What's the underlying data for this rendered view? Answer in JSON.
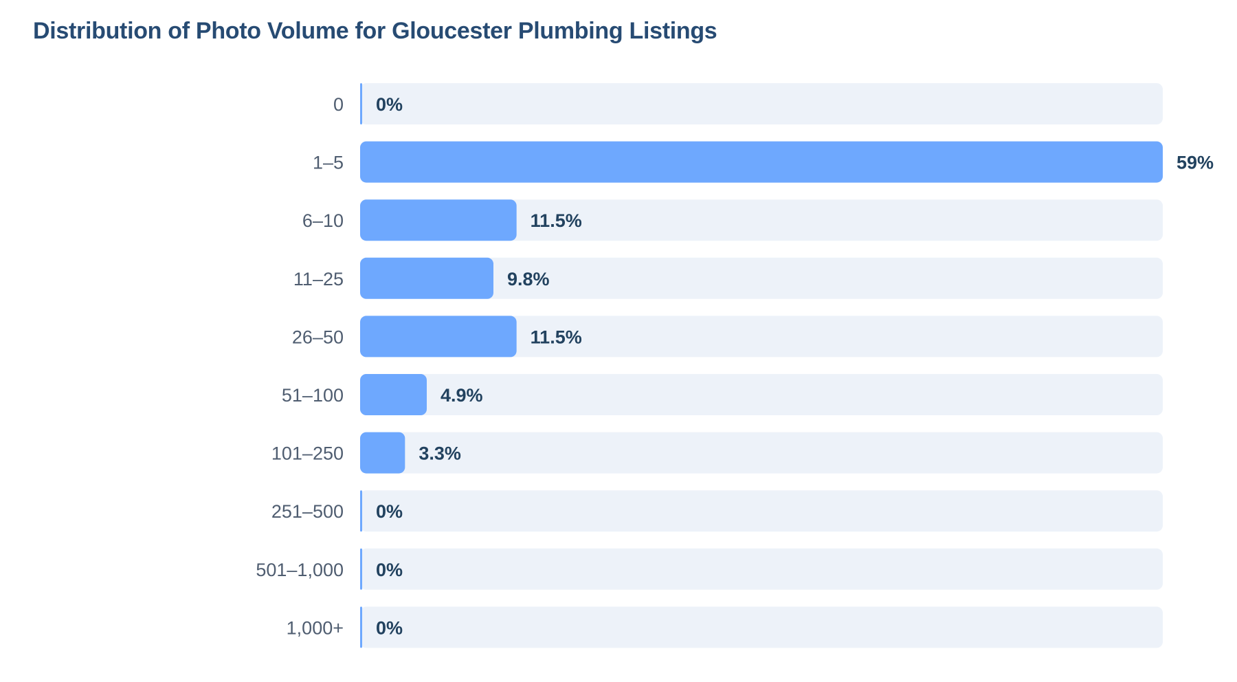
{
  "chart_data": {
    "type": "bar",
    "orientation": "horizontal",
    "title": "Distribution of Photo Volume for Gloucester Plumbing Listings",
    "xlabel": "",
    "ylabel": "",
    "categories": [
      "0",
      "1–5",
      "6–10",
      "11–25",
      "26–50",
      "51–100",
      "101–250",
      "251–500",
      "501–1,000",
      "1,000+"
    ],
    "values": [
      0,
      59,
      11.5,
      9.8,
      11.5,
      4.9,
      3.3,
      0,
      0,
      0
    ],
    "value_labels": [
      "0%",
      "59%",
      "11.5%",
      "9.8%",
      "11.5%",
      "4.9%",
      "3.3%",
      "0%",
      "0%",
      "0%"
    ],
    "xlim": [
      0,
      59
    ],
    "grid": false,
    "legend": "none",
    "colors": {
      "bar": "#6ea8fe",
      "track": "#edf2f9",
      "title": "#274b73",
      "category_text": "#4f5d70",
      "value_text": "#22425f"
    }
  }
}
